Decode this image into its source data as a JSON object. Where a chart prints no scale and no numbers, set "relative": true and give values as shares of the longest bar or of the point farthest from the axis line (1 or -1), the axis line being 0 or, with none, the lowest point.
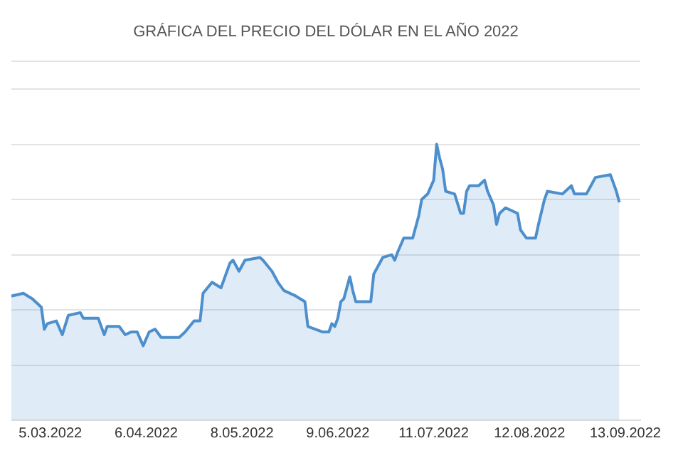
{
  "chart_data": {
    "type": "area",
    "title": "GRÁFICA DEL PRECIO DEL DÓLAR EN EL AÑO 2022",
    "relative": true,
    "grid": "y",
    "legend": false,
    "marker": "none",
    "line_style": "solid",
    "xlim": [
      "2022-02-20",
      "2022-09-18"
    ],
    "xticks": [
      {
        "value": "2022-03-05",
        "label": "5.03.2022"
      },
      {
        "value": "2022-04-06",
        "label": "6.04.2022"
      },
      {
        "value": "2022-05-08",
        "label": "8.05.2022"
      },
      {
        "value": "2022-06-09",
        "label": "9.06.2022"
      },
      {
        "value": "2022-07-11",
        "label": "11.07.2022"
      },
      {
        "value": "2022-08-12",
        "label": "12.08.2022"
      },
      {
        "value": "2022-09-13",
        "label": "13.09.2022"
      }
    ],
    "series": [
      {
        "color": "#4d8fcc",
        "x": [
          "2022-02-20",
          "2022-02-24",
          "2022-02-27",
          "2022-03-02",
          "2022-03-03",
          "2022-03-04",
          "2022-03-07",
          "2022-03-09",
          "2022-03-11",
          "2022-03-15",
          "2022-03-16",
          "2022-03-21",
          "2022-03-23",
          "2022-03-24",
          "2022-03-28",
          "2022-03-30",
          "2022-04-01",
          "2022-04-03",
          "2022-04-05",
          "2022-04-07",
          "2022-04-09",
          "2022-04-11",
          "2022-04-17",
          "2022-04-19",
          "2022-04-22",
          "2022-04-24",
          "2022-04-25",
          "2022-04-28",
          "2022-05-01",
          "2022-05-04",
          "2022-05-05",
          "2022-05-07",
          "2022-05-09",
          "2022-05-14",
          "2022-05-15",
          "2022-05-18",
          "2022-05-20",
          "2022-05-22",
          "2022-05-26",
          "2022-05-29",
          "2022-05-30",
          "2022-06-04",
          "2022-06-06",
          "2022-06-07",
          "2022-06-08",
          "2022-06-09",
          "2022-06-10",
          "2022-06-11",
          "2022-06-13",
          "2022-06-14",
          "2022-06-15",
          "2022-06-20",
          "2022-06-21",
          "2022-06-24",
          "2022-06-27",
          "2022-06-28",
          "2022-06-29",
          "2022-07-01",
          "2022-07-04",
          "2022-07-06",
          "2022-07-07",
          "2022-07-09",
          "2022-07-11",
          "2022-07-12",
          "2022-07-13",
          "2022-07-14",
          "2022-07-15",
          "2022-07-18",
          "2022-07-20",
          "2022-07-21",
          "2022-07-22",
          "2022-07-23",
          "2022-07-26",
          "2022-07-28",
          "2022-07-29",
          "2022-07-31",
          "2022-08-01",
          "2022-08-02",
          "2022-08-04",
          "2022-08-08",
          "2022-08-09",
          "2022-08-11",
          "2022-08-14",
          "2022-08-15",
          "2022-08-17",
          "2022-08-18",
          "2022-08-23",
          "2022-08-26",
          "2022-08-27",
          "2022-08-31",
          "2022-09-03",
          "2022-09-08",
          "2022-09-10",
          "2022-09-11"
        ],
        "values": [
          0.45,
          0.46,
          0.44,
          0.41,
          0.33,
          0.35,
          0.36,
          0.31,
          0.38,
          0.39,
          0.37,
          0.37,
          0.31,
          0.34,
          0.34,
          0.31,
          0.32,
          0.32,
          0.27,
          0.32,
          0.33,
          0.3,
          0.3,
          0.32,
          0.36,
          0.36,
          0.46,
          0.5,
          0.48,
          0.57,
          0.58,
          0.54,
          0.58,
          0.59,
          0.58,
          0.54,
          0.5,
          0.47,
          0.45,
          0.43,
          0.34,
          0.32,
          0.32,
          0.35,
          0.34,
          0.37,
          0.43,
          0.44,
          0.52,
          0.47,
          0.43,
          0.43,
          0.53,
          0.59,
          0.6,
          0.58,
          0.61,
          0.66,
          0.66,
          0.74,
          0.8,
          0.82,
          0.87,
          1.0,
          0.95,
          0.91,
          0.83,
          0.82,
          0.75,
          0.75,
          0.83,
          0.85,
          0.85,
          0.87,
          0.83,
          0.78,
          0.71,
          0.75,
          0.77,
          0.75,
          0.69,
          0.66,
          0.66,
          0.71,
          0.8,
          0.83,
          0.82,
          0.85,
          0.82,
          0.82,
          0.88,
          0.89,
          0.83,
          0.79
        ]
      }
    ]
  }
}
